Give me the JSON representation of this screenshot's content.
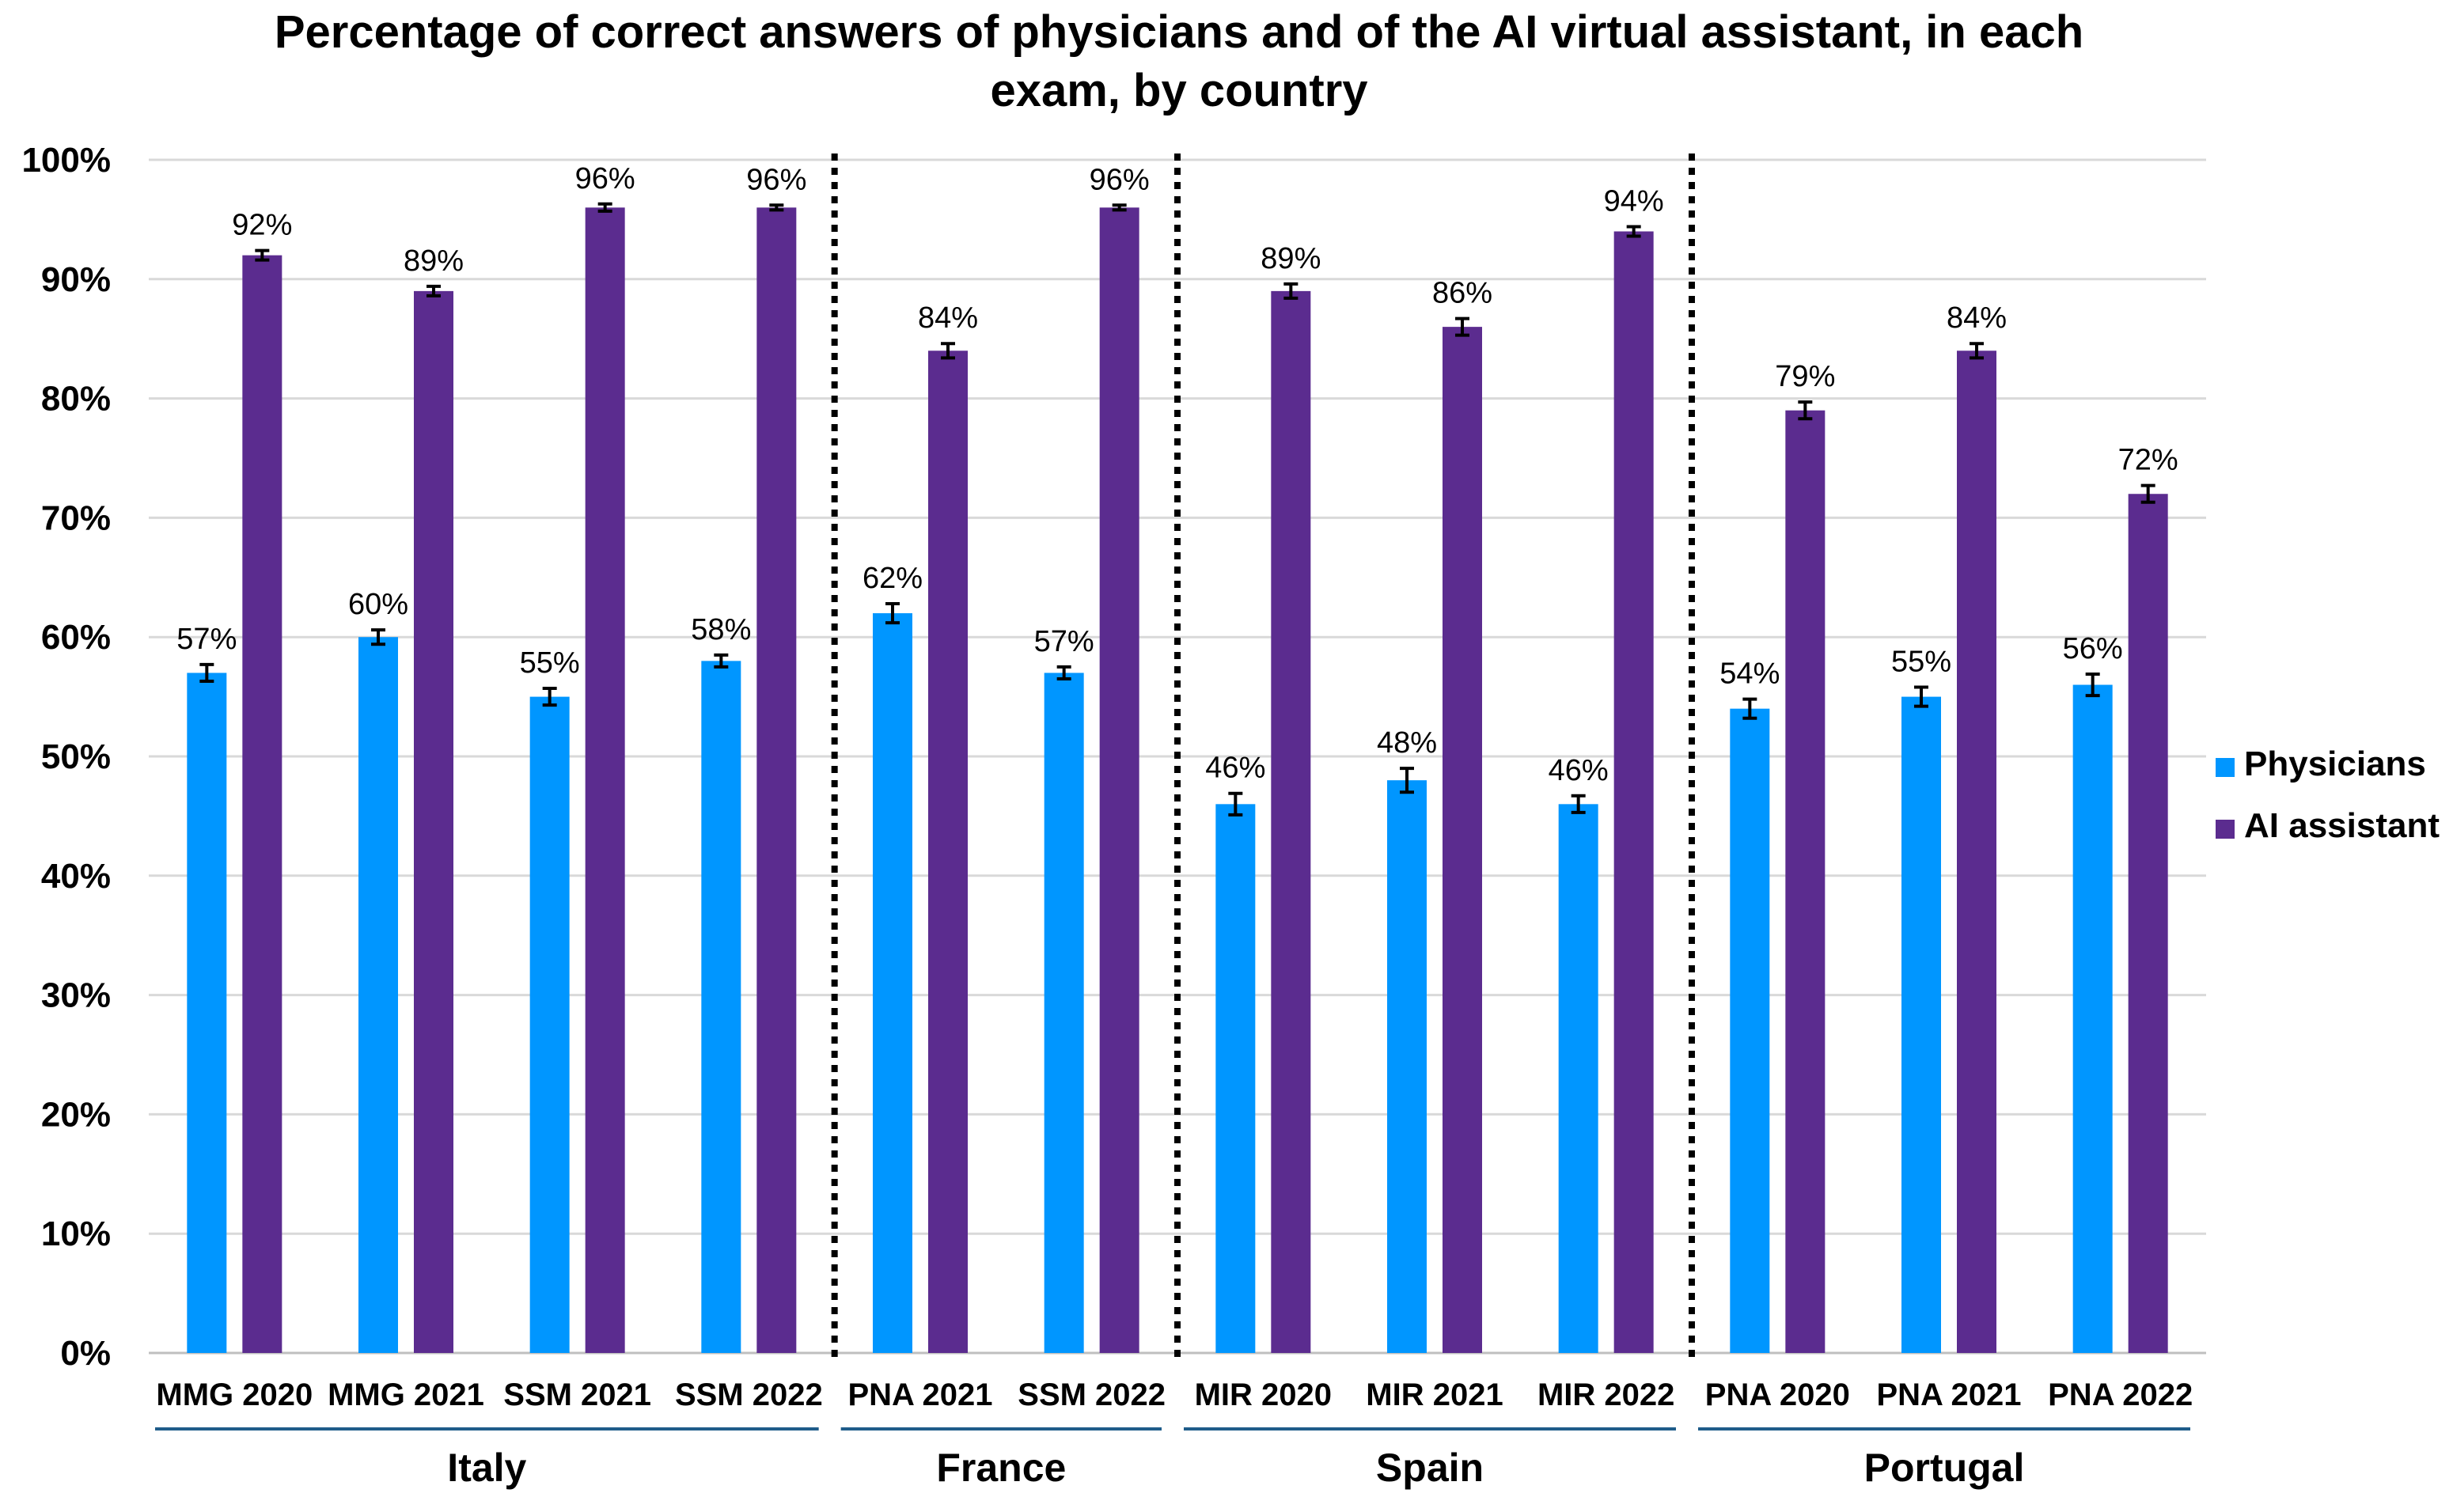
{
  "chart_data": {
    "type": "bar",
    "title": "Percentage of correct answers of physicians and of the AI virtual assistant, in each exam, by country",
    "title_lines": [
      "Percentage of correct answers of physicians and of the AI virtual assistant, in each",
      "exam, by country"
    ],
    "categories": [
      "MMG 2020",
      "MMG 2021",
      "SSM 2021",
      "SSM 2022",
      "PNA 2021",
      "SSM 2022",
      "MIR 2020",
      "MIR 2021",
      "MIR 2022",
      "PNA 2020",
      "PNA 2021",
      "PNA 2022"
    ],
    "groups": [
      {
        "label": "Italy",
        "start": 0,
        "count": 4
      },
      {
        "label": "France",
        "start": 4,
        "count": 2
      },
      {
        "label": "Spain",
        "start": 6,
        "count": 3
      },
      {
        "label": "Portugal",
        "start": 9,
        "count": 3
      }
    ],
    "series": [
      {
        "name": "Physicians",
        "color": "#0096FF",
        "values": [
          57,
          60,
          55,
          58,
          62,
          57,
          46,
          48,
          46,
          54,
          55,
          56
        ],
        "labels": [
          "57%",
          "60%",
          "55%",
          "58%",
          "62%",
          "57%",
          "46%",
          "48%",
          "46%",
          "54%",
          "55%",
          "56%"
        ],
        "errors": [
          0.7,
          0.6,
          0.7,
          0.5,
          0.8,
          0.5,
          0.9,
          1.0,
          0.7,
          0.8,
          0.8,
          0.9
        ]
      },
      {
        "name": "AI assistant",
        "color": "#5B2C8F",
        "values": [
          92,
          89,
          96,
          96,
          84,
          96,
          89,
          86,
          94,
          79,
          84,
          72
        ],
        "labels": [
          "92%",
          "89%",
          "96%",
          "96%",
          "84%",
          "96%",
          "89%",
          "86%",
          "94%",
          "79%",
          "84%",
          "72%"
        ],
        "errors": [
          0.4,
          0.4,
          0.3,
          0.2,
          0.6,
          0.2,
          0.6,
          0.7,
          0.4,
          0.7,
          0.6,
          0.7
        ]
      }
    ],
    "y_ticks": [
      "0%",
      "10%",
      "20%",
      "30%",
      "40%",
      "50%",
      "60%",
      "70%",
      "80%",
      "90%",
      "100%"
    ],
    "ylim": [
      0,
      100
    ],
    "xlabel": "",
    "ylabel": "",
    "grid": true,
    "legend_position": "right",
    "error_bars": true,
    "separator_after": [
      3,
      5,
      8
    ]
  }
}
